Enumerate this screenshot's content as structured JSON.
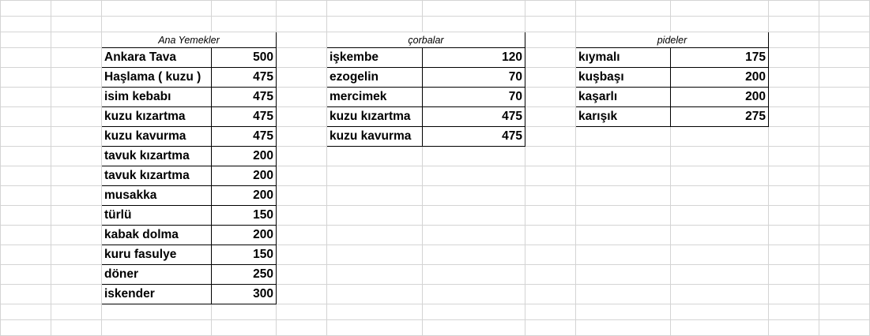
{
  "tables": [
    {
      "title": "Ana Yemekler",
      "rows": [
        [
          "Ankara Tava",
          "500"
        ],
        [
          "Haşlama ( kuzu )",
          "475"
        ],
        [
          "isim kebabı",
          "475"
        ],
        [
          "kuzu kızartma",
          "475"
        ],
        [
          "kuzu kavurma",
          "475"
        ],
        [
          "tavuk kızartma",
          "200"
        ],
        [
          "tavuk kızartma",
          "200"
        ],
        [
          "musakka",
          "200"
        ],
        [
          "türlü",
          "150"
        ],
        [
          "kabak dolma",
          "200"
        ],
        [
          "kuru fasulye",
          "150"
        ],
        [
          "döner",
          "250"
        ],
        [
          "iskender",
          "300"
        ]
      ]
    },
    {
      "title": "çorbalar",
      "rows": [
        [
          "işkembe",
          "120"
        ],
        [
          "ezogelin",
          "70"
        ],
        [
          "mercimek",
          "70"
        ],
        [
          "kuzu kızartma",
          "475"
        ],
        [
          "kuzu kavurma",
          "475"
        ]
      ]
    },
    {
      "title": "pideler",
      "rows": [
        [
          "kıymalı",
          "175"
        ],
        [
          "kuşbaşı",
          "200"
        ],
        [
          "kaşarlı",
          "200"
        ],
        [
          "karışık",
          "275"
        ]
      ]
    }
  ]
}
